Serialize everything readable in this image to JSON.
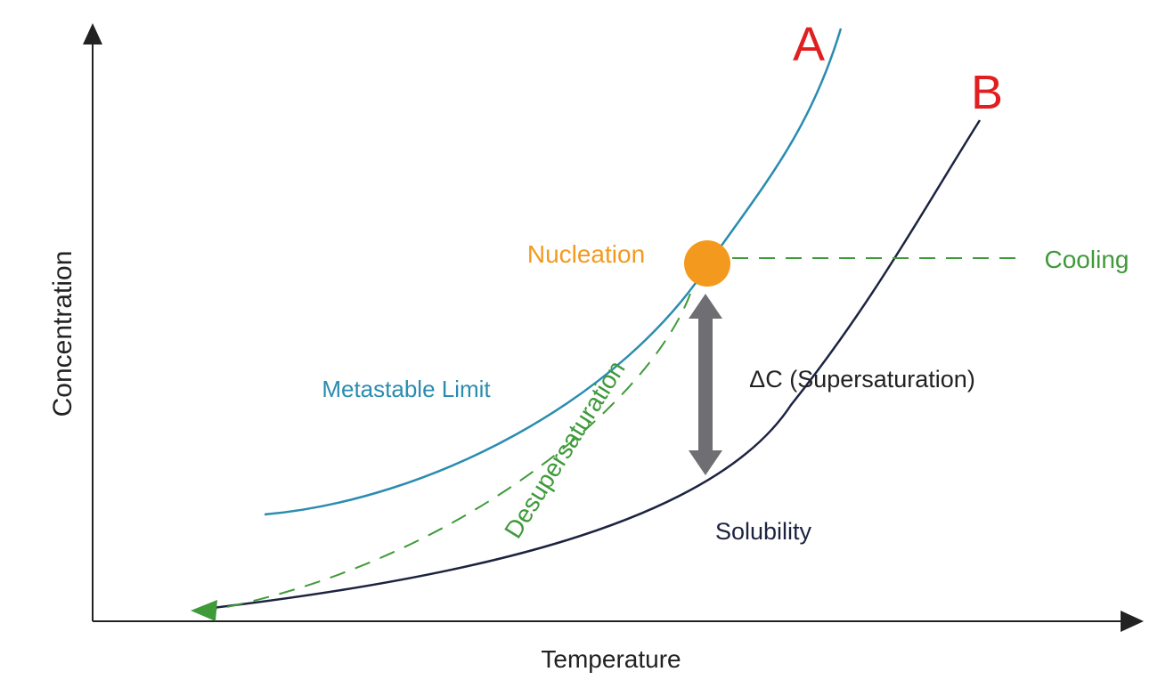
{
  "axes": {
    "x_label": "Temperature",
    "y_label": "Concentration"
  },
  "curves": {
    "metastable": {
      "letter": "A",
      "label": "Metastable Limit"
    },
    "solubility": {
      "letter": "B",
      "label": "Solubility"
    }
  },
  "annotations": {
    "nucleation": "Nucleation",
    "cooling": "Cooling",
    "desupersaturation": "Desupersaturation",
    "supersaturation": "ΔC (Supersaturation)"
  },
  "colors": {
    "metastable": "#2a8cb0",
    "solubility": "#1c2340",
    "dashed": "#3f9a3a",
    "nucleation": "#f39a1e",
    "arrow": "#6e6e73",
    "letters": "#e02020",
    "axis": "#222222"
  }
}
